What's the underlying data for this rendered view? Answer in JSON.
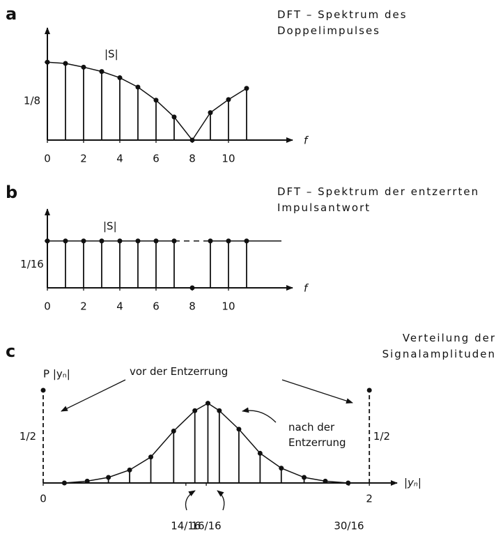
{
  "chart_data": [
    {
      "type": "stem",
      "panel_label": "a",
      "title": "DFT – Spektrum des Doppelimpulses",
      "ylabel": "|S|",
      "xlabel": "f",
      "x": [
        0,
        1,
        2,
        3,
        4,
        5,
        6,
        7,
        8,
        9,
        10,
        11
      ],
      "values": [
        0.125,
        0.123,
        0.117,
        0.11,
        0.1,
        0.085,
        0.064,
        0.037,
        0,
        0.044,
        0.065,
        0.083
      ],
      "xlim": [
        0,
        13.54
      ],
      "ylim": [
        0,
        0.18
      ],
      "xticks": [
        0,
        2,
        4,
        6,
        8,
        10
      ],
      "yticks": [
        {
          "value": 0.125,
          "label": "1/8"
        }
      ],
      "curve": true,
      "color": "#111111"
    },
    {
      "type": "stem",
      "panel_label": "b",
      "title": "DFT – Spektrum der entzerrten Impulsantwort",
      "ylabel": "|S|",
      "xlabel": "f",
      "x": [
        0,
        1,
        2,
        3,
        4,
        5,
        6,
        7,
        8,
        9,
        10,
        11
      ],
      "values": [
        0.0625,
        0.0625,
        0.0625,
        0.0625,
        0.0625,
        0.0625,
        0.0625,
        0.0625,
        0,
        0.0625,
        0.0625,
        0.0625
      ],
      "xlim": [
        0,
        13.54
      ],
      "ylim": [
        0,
        0.105
      ],
      "xticks": [
        0,
        2,
        4,
        6,
        8,
        10
      ],
      "yticks": [
        {
          "value": 0.0625,
          "label": "1/16"
        }
      ],
      "curve": true,
      "gap_style": "dashed",
      "color": "#111111"
    },
    {
      "type": "stem",
      "panel_label": "c",
      "title": "Verteilung der Signalamplituden",
      "ylabel": "P |yₙ|",
      "xlabel": "|yₙ|",
      "xlim": [
        0,
        2.17
      ],
      "ylim": [
        0,
        0.575
      ],
      "xticks": [
        0,
        2,
        {
          "value": 0.875,
          "label": "14/16"
        },
        {
          "value": 1,
          "label": "16/16"
        },
        {
          "value": 1.875,
          "label": "30/16"
        }
      ],
      "yticks": [
        {
          "value": 0.5,
          "label": "1/2"
        }
      ],
      "series": [
        {
          "name": "vor der Entzerrung",
          "color": "#111111",
          "line_style": "dashed",
          "x": [
            0,
            2
          ],
          "values": [
            0.5,
            0.5
          ]
        },
        {
          "name": "nach der Entzerrung",
          "color": "#111111",
          "curve": true,
          "x": [
            0.13,
            0.27,
            0.4,
            0.53,
            0.66,
            0.8,
            0.93,
            1.01,
            1.08,
            1.2,
            1.33,
            1.46,
            1.6,
            1.73,
            1.87
          ],
          "values": [
            0,
            0.01,
            0.03,
            0.07,
            0.14,
            0.28,
            0.39,
            0.43,
            0.39,
            0.29,
            0.16,
            0.08,
            0.03,
            0.01,
            0
          ]
        }
      ]
    }
  ]
}
